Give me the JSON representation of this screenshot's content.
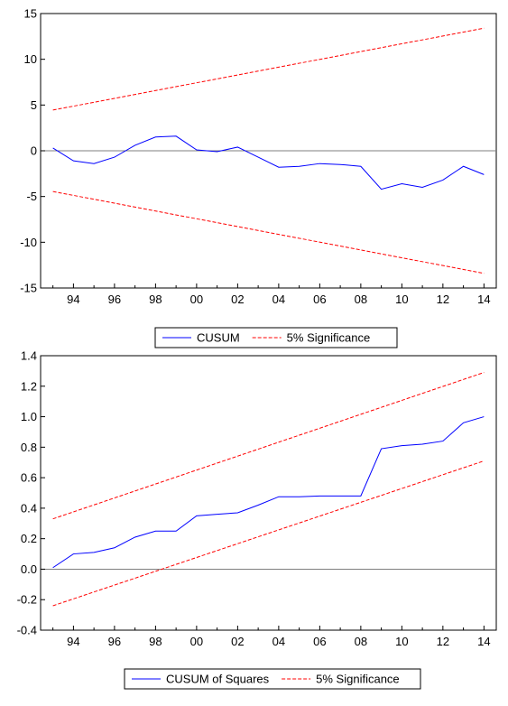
{
  "chart_data": [
    {
      "type": "line",
      "title": "",
      "xlabel": "",
      "ylabel": "",
      "xlim": [
        1992.4,
        2014.6
      ],
      "ylim": [
        -15,
        15
      ],
      "yticks": [
        -15,
        -10,
        -5,
        0,
        5,
        10,
        15
      ],
      "xticks": [
        {
          "value": 1994,
          "label": "94"
        },
        {
          "value": 1996,
          "label": "96"
        },
        {
          "value": 1998,
          "label": "98"
        },
        {
          "value": 2000,
          "label": "00"
        },
        {
          "value": 2002,
          "label": "02"
        },
        {
          "value": 2004,
          "label": "04"
        },
        {
          "value": 2006,
          "label": "06"
        },
        {
          "value": 2008,
          "label": "08"
        },
        {
          "value": 2010,
          "label": "10"
        },
        {
          "value": 2012,
          "label": "12"
        },
        {
          "value": 2014,
          "label": "14"
        }
      ],
      "zero_line": true,
      "legend_position": "bottom-center",
      "series": [
        {
          "name": "CUSUM",
          "color": "#0000ff",
          "style": "solid",
          "x": [
            1993,
            1994,
            1995,
            1996,
            1997,
            1998,
            1999,
            2000,
            2001,
            2002,
            2003,
            2004,
            2005,
            2006,
            2007,
            2008,
            2009,
            2010,
            2011,
            2012,
            2013,
            2014
          ],
          "values": [
            0.3,
            -1.1,
            -1.4,
            -0.7,
            0.6,
            1.5,
            1.6,
            0.1,
            -0.1,
            0.4,
            -0.7,
            -1.8,
            -1.7,
            -1.4,
            -1.5,
            -1.7,
            -4.2,
            -3.6,
            -4.0,
            -3.2,
            -1.7,
            -2.6
          ]
        },
        {
          "name": "5% Significance",
          "color": "#ff0000",
          "style": "dashed",
          "x": [
            1993,
            2014
          ],
          "values": [
            4.45,
            13.4
          ]
        },
        {
          "name": "",
          "color": "#ff0000",
          "style": "dashed",
          "x": [
            1993,
            2014
          ],
          "values": [
            -4.45,
            -13.4
          ]
        }
      ]
    },
    {
      "type": "line",
      "title": "",
      "xlabel": "",
      "ylabel": "",
      "xlim": [
        1992.4,
        2014.6
      ],
      "ylim": [
        -0.4,
        1.4
      ],
      "yticks": [
        -0.4,
        -0.2,
        0.0,
        0.2,
        0.4,
        0.6,
        0.8,
        1.0,
        1.2,
        1.4
      ],
      "ytick_labels": [
        "-0.4",
        "-0.2",
        "0.0",
        "0.2",
        "0.4",
        "0.6",
        "0.8",
        "1.0",
        "1.2",
        "1.4"
      ],
      "xticks": [
        {
          "value": 1994,
          "label": "94"
        },
        {
          "value": 1996,
          "label": "96"
        },
        {
          "value": 1998,
          "label": "98"
        },
        {
          "value": 2000,
          "label": "00"
        },
        {
          "value": 2002,
          "label": "02"
        },
        {
          "value": 2004,
          "label": "04"
        },
        {
          "value": 2006,
          "label": "06"
        },
        {
          "value": 2008,
          "label": "08"
        },
        {
          "value": 2010,
          "label": "10"
        },
        {
          "value": 2012,
          "label": "12"
        },
        {
          "value": 2014,
          "label": "14"
        }
      ],
      "zero_line": true,
      "legend_position": "bottom-center",
      "series": [
        {
          "name": "CUSUM of Squares",
          "color": "#0000ff",
          "style": "solid",
          "x": [
            1993,
            1994,
            1995,
            1996,
            1997,
            1998,
            1999,
            2000,
            2001,
            2002,
            2003,
            2004,
            2005,
            2006,
            2007,
            2008,
            2009,
            2010,
            2011,
            2012,
            2013,
            2014
          ],
          "values": [
            0.01,
            0.1,
            0.11,
            0.14,
            0.21,
            0.25,
            0.25,
            0.35,
            0.36,
            0.37,
            0.42,
            0.475,
            0.475,
            0.48,
            0.48,
            0.48,
            0.79,
            0.81,
            0.82,
            0.84,
            0.96,
            1.0
          ]
        },
        {
          "name": "5% Significance",
          "color": "#ff0000",
          "style": "dashed",
          "x": [
            1993,
            2014
          ],
          "values": [
            0.33,
            1.29
          ]
        },
        {
          "name": "",
          "color": "#ff0000",
          "style": "dashed",
          "x": [
            1993,
            2014
          ],
          "values": [
            -0.24,
            0.71
          ]
        }
      ]
    }
  ]
}
